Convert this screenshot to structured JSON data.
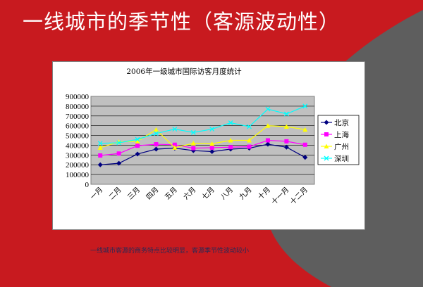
{
  "slide": {
    "title": "一线城市的季节性（客源波动性）",
    "caption": "一线城市客源的商务特点比较明显，客源季节性波动较小"
  },
  "colors": {
    "background": "#5e5e5e",
    "accent": "#c81a1f",
    "plot_area": "#c0c0c0"
  },
  "chart_data": {
    "type": "line",
    "title": "2006年一级城市国际访客月度统计",
    "xlabel": "",
    "ylabel": "",
    "categories": [
      "一月",
      "二月",
      "三月",
      "四月",
      "五月",
      "六月",
      "七月",
      "八月",
      "九月",
      "十月",
      "十一月",
      "十二月"
    ],
    "ylim": [
      0,
      900000
    ],
    "yticks": [
      "900000",
      "800000",
      "700000",
      "600000",
      "500000",
      "400000",
      "300000",
      "200000",
      "100000",
      "0"
    ],
    "grid": true,
    "legend_position": "right",
    "series": [
      {
        "name": "北京",
        "color": "#000080",
        "marker": "diamond",
        "values": [
          200000,
          215000,
          310000,
          360000,
          370000,
          345000,
          335000,
          360000,
          370000,
          410000,
          380000,
          275000
        ]
      },
      {
        "name": "上海",
        "color": "#ff00ff",
        "marker": "square",
        "values": [
          295000,
          315000,
          395000,
          410000,
          405000,
          370000,
          375000,
          380000,
          385000,
          450000,
          440000,
          405000
        ]
      },
      {
        "name": "广州",
        "color": "#ffff00",
        "marker": "triangle",
        "values": [
          375000,
          435000,
          440000,
          560000,
          375000,
          420000,
          415000,
          450000,
          450000,
          600000,
          590000,
          560000
        ]
      },
      {
        "name": "深圳",
        "color": "#00ffff",
        "marker": "x",
        "values": [
          420000,
          425000,
          460000,
          520000,
          565000,
          530000,
          565000,
          630000,
          590000,
          770000,
          720000,
          800000
        ]
      }
    ]
  }
}
